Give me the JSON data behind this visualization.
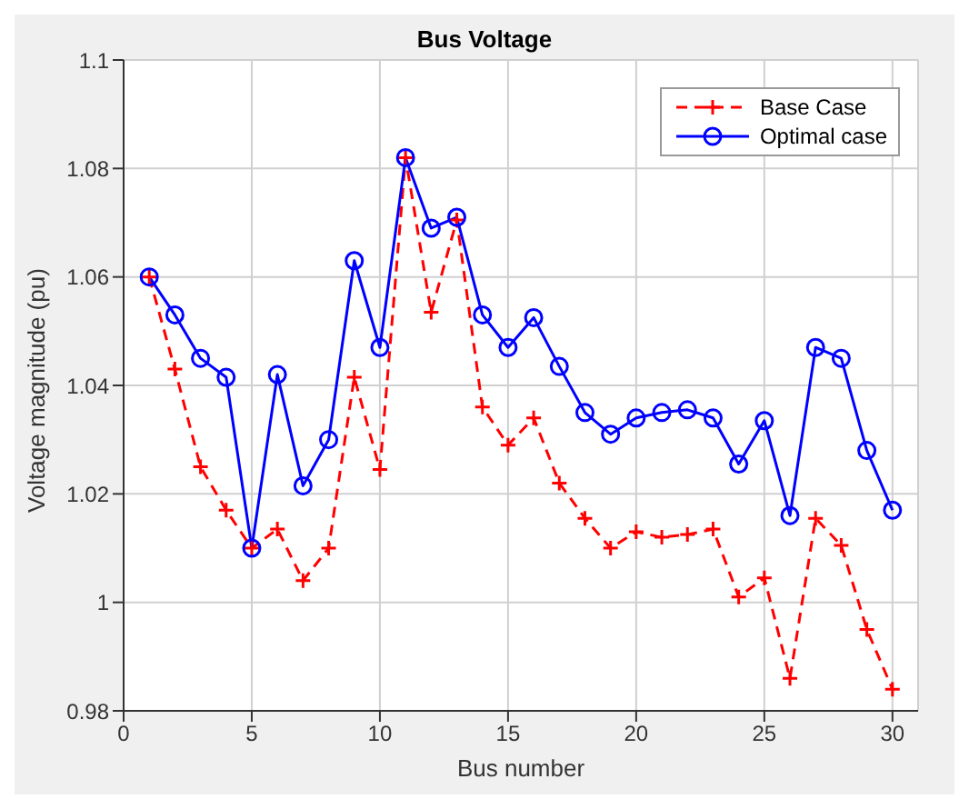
{
  "chart_data": {
    "type": "line",
    "title": "Bus Voltage",
    "xlabel": "Bus number",
    "ylabel": "Voltage magnitude (pu)",
    "x": [
      1,
      2,
      3,
      4,
      5,
      6,
      7,
      8,
      9,
      10,
      11,
      12,
      13,
      14,
      15,
      16,
      17,
      18,
      19,
      20,
      21,
      22,
      23,
      24,
      25,
      26,
      27,
      28,
      29,
      30
    ],
    "series": [
      {
        "name": "Base Case",
        "color": "#ff0000",
        "marker": "cross",
        "line_style": "dashed",
        "values": [
          1.06,
          1.043,
          1.025,
          1.017,
          1.01,
          1.0135,
          1.004,
          1.01,
          1.0415,
          1.0245,
          1.082,
          1.0535,
          1.0705,
          1.036,
          1.029,
          1.034,
          1.022,
          1.0155,
          1.01,
          1.013,
          1.012,
          1.0125,
          1.0135,
          1.001,
          1.0045,
          0.986,
          1.0155,
          1.0105,
          0.995,
          0.984
        ]
      },
      {
        "name": "Optimal case",
        "color": "#0000ff",
        "marker": "circle",
        "line_style": "solid",
        "values": [
          1.06,
          1.053,
          1.045,
          1.0415,
          1.01,
          1.042,
          1.0215,
          1.03,
          1.063,
          1.047,
          1.082,
          1.069,
          1.071,
          1.053,
          1.047,
          1.0525,
          1.0435,
          1.035,
          1.031,
          1.034,
          1.035,
          1.0355,
          1.034,
          1.0255,
          1.0335,
          1.016,
          1.047,
          1.045,
          1.028,
          1.017
        ]
      }
    ],
    "xlim": [
      0,
      31
    ],
    "xticks": [
      0,
      5,
      10,
      15,
      20,
      25,
      30
    ],
    "ylim": [
      0.98,
      1.1
    ],
    "yticks": [
      0.98,
      1,
      1.02,
      1.04,
      1.06,
      1.08,
      1.1
    ],
    "grid": true,
    "legend": "top right"
  }
}
